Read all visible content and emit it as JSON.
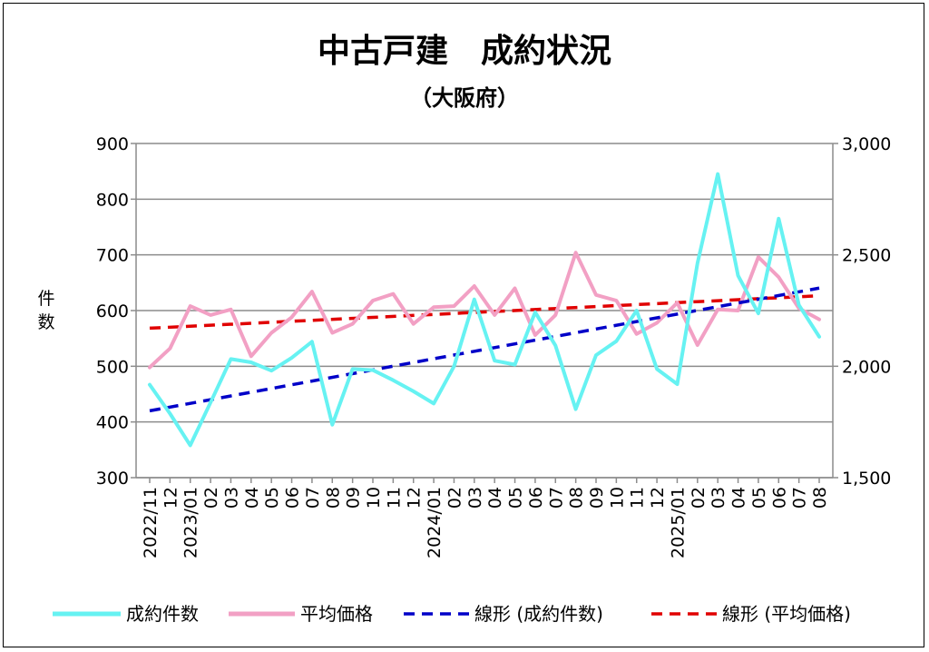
{
  "chart_data": {
    "type": "line",
    "title": "中古戸建　成約状況",
    "subtitle": "（大阪府）",
    "ylabel": "件数",
    "ylabel_right": "",
    "ylim": [
      300,
      900
    ],
    "ylim_right": [
      1500,
      3000
    ],
    "y_ticks": [
      "300",
      "400",
      "500",
      "600",
      "700",
      "800",
      "900"
    ],
    "y_ticks_right": [
      "1,500",
      "2,000",
      "2,500",
      "3,000"
    ],
    "grid": true,
    "legend_position": "bottom",
    "categories": [
      "2022/11",
      "12",
      "2023/01",
      "02",
      "03",
      "04",
      "05",
      "06",
      "07",
      "08",
      "09",
      "10",
      "11",
      "12",
      "2024/01",
      "02",
      "03",
      "04",
      "05",
      "06",
      "07",
      "08",
      "09",
      "10",
      "11",
      "12",
      "2025/01",
      "02",
      "03",
      "04",
      "05",
      "06",
      "07",
      "08"
    ],
    "series": [
      {
        "name": "成約件数",
        "axis": "left",
        "color": "#66f2f2",
        "style": "solid",
        "values": [
          467,
          415,
          358,
          435,
          513,
          507,
          492,
          515,
          544,
          395,
          495,
          493,
          475,
          455,
          433,
          500,
          620,
          510,
          503,
          597,
          537,
          423,
          520,
          545,
          600,
          495,
          468,
          685,
          845,
          663,
          595,
          765,
          610,
          553
        ]
      },
      {
        "name": "平均価格",
        "axis": "right",
        "color": "#f2a0c4",
        "style": "solid",
        "values": [
          1995,
          2080,
          2270,
          2230,
          2255,
          2045,
          2150,
          2220,
          2335,
          2150,
          2190,
          2295,
          2325,
          2190,
          2265,
          2270,
          2360,
          2230,
          2350,
          2140,
          2230,
          2510,
          2320,
          2295,
          2145,
          2195,
          2285,
          2095,
          2255,
          2250,
          2490,
          2400,
          2260,
          2210
        ]
      },
      {
        "name": "線形 (成約件数)",
        "axis": "left",
        "color": "#0000c8",
        "style": "dashed",
        "trend_of": 0
      },
      {
        "name": "線形 (平均価格)",
        "axis": "right",
        "color": "#e00000",
        "style": "dashed",
        "trend_of": 1
      }
    ]
  }
}
